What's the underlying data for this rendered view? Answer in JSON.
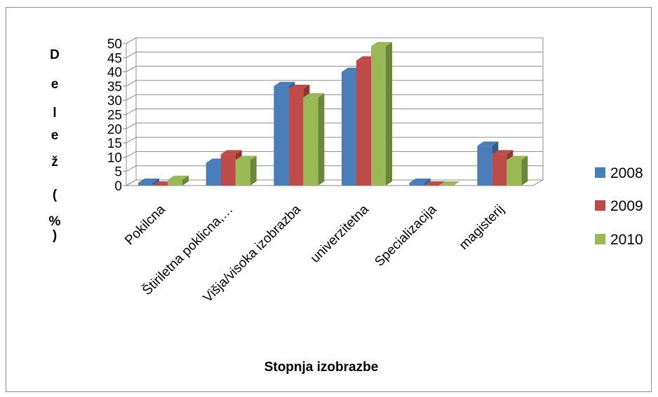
{
  "chart_data": {
    "type": "bar",
    "subtype": "3d-clustered-column",
    "categories": [
      "Pokilcna",
      "Štiriletna poklicna,…",
      "Višja/visoka izobrazba",
      "univerzitetna",
      "Specializacija",
      "magisterij"
    ],
    "series": [
      {
        "name": "2008",
        "color": "#4a7ebb",
        "values": [
          1,
          8,
          35,
          40,
          1,
          14
        ]
      },
      {
        "name": "2009",
        "color": "#be4b48",
        "values": [
          0,
          11,
          34,
          44,
          0,
          11
        ]
      },
      {
        "name": "2010",
        "color": "#98b954",
        "values": [
          2,
          9,
          31,
          49,
          0,
          9
        ]
      }
    ],
    "ylabel_chars": [
      "D",
      "e",
      "l",
      "e",
      "ž",
      "(",
      "%",
      ")"
    ],
    "xlabel": "Stopnja izobrazbe",
    "ylim": [
      0,
      50
    ],
    "yticks": [
      0,
      5,
      10,
      15,
      20,
      25,
      30,
      35,
      40,
      45,
      50
    ],
    "grid": true,
    "legend_position": "right"
  }
}
